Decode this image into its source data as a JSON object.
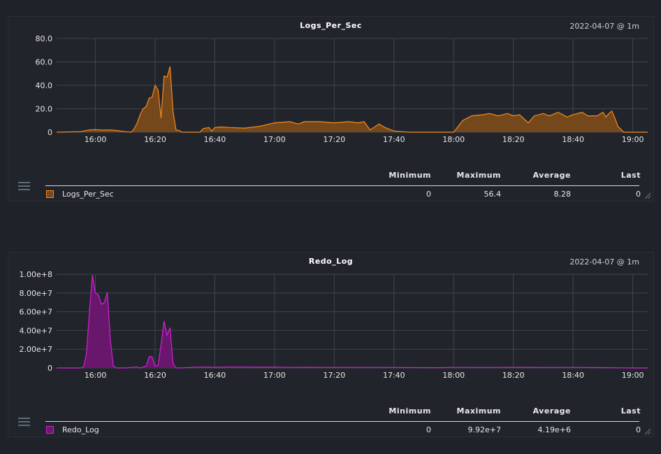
{
  "legend_headers": {
    "minimum": "Minimum",
    "maximum": "Maximum",
    "average": "Average",
    "last": "Last"
  },
  "panels": [
    {
      "title": "Logs_Per_Sec",
      "range_label": "2022-04-07 @ 1m",
      "legend": {
        "name": "Logs_Per_Sec",
        "minimum": "0",
        "maximum": "56.4",
        "average": "8.28",
        "last": "0"
      }
    },
    {
      "title": "Redo_Log",
      "range_label": "2022-04-07 @ 1m",
      "legend": {
        "name": "Redo_Log",
        "minimum": "0",
        "maximum": "9.92e+7",
        "average": "4.19e+6",
        "last": "0"
      }
    }
  ],
  "colors": {
    "background": "#1f2329",
    "panel": "#21252b",
    "grid": "#3f444c",
    "series_0_stroke": "#f58a1f",
    "series_0_fill": "#7a4a1a",
    "series_1_stroke": "#d321d6",
    "series_1_fill": "#6e1670"
  },
  "chart_data": [
    {
      "type": "area",
      "title": "Logs_Per_Sec",
      "xlabel": "",
      "ylabel": "",
      "x_ticks": [
        "16:00",
        "16:20",
        "16:40",
        "17:00",
        "17:20",
        "17:40",
        "18:00",
        "18:20",
        "18:40",
        "19:00"
      ],
      "x_range": [
        "15:47",
        "19:05"
      ],
      "y_ticks": [
        "0",
        "20.0",
        "40.0",
        "60.0",
        "80.0"
      ],
      "ylim": [
        0,
        80
      ],
      "grid": true,
      "legend_position": "bottom",
      "series": [
        {
          "name": "Logs_Per_Sec",
          "x": [
            "15:47",
            "15:55",
            "15:58",
            "16:00",
            "16:02",
            "16:05",
            "16:07",
            "16:10",
            "16:12",
            "16:13",
            "16:14",
            "16:15",
            "16:16",
            "16:17",
            "16:18",
            "16:19",
            "16:20",
            "16:21",
            "16:22",
            "16:23",
            "16:24",
            "16:25",
            "16:26",
            "16:27",
            "16:28",
            "16:29",
            "16:30",
            "16:35",
            "16:36",
            "16:38",
            "16:39",
            "16:40",
            "16:42",
            "16:45",
            "16:50",
            "16:55",
            "17:00",
            "17:05",
            "17:08",
            "17:10",
            "17:15",
            "17:20",
            "17:25",
            "17:28",
            "17:30",
            "17:32",
            "17:35",
            "17:37",
            "17:40",
            "17:45",
            "17:50",
            "17:55",
            "17:58",
            "18:00",
            "18:03",
            "18:06",
            "18:10",
            "18:12",
            "18:15",
            "18:18",
            "18:20",
            "18:22",
            "18:25",
            "18:27",
            "18:30",
            "18:32",
            "18:35",
            "18:38",
            "18:40",
            "18:43",
            "18:45",
            "18:48",
            "18:50",
            "18:51",
            "18:52",
            "18:53",
            "18:54",
            "18:55",
            "18:57",
            "19:00",
            "19:05"
          ],
          "y": [
            0,
            0.5,
            2,
            2.2,
            1.8,
            2,
            1.5,
            0.5,
            0,
            3,
            8,
            15,
            20,
            22,
            29,
            30,
            40,
            36,
            12,
            48,
            47,
            56,
            18,
            2,
            1.5,
            0,
            0,
            0,
            3,
            4,
            1,
            4,
            4.5,
            4,
            3.5,
            5,
            8,
            9,
            7,
            9,
            9,
            8,
            9,
            8,
            9,
            2,
            7,
            4,
            1,
            0,
            0,
            0,
            0,
            0,
            10,
            14,
            15,
            16,
            14,
            16,
            14,
            15,
            8,
            14,
            16,
            14,
            17,
            13,
            15,
            17,
            14,
            14,
            17,
            13,
            16,
            18,
            12,
            5,
            0,
            0,
            0
          ]
        }
      ]
    },
    {
      "type": "area",
      "title": "Redo_Log",
      "xlabel": "",
      "ylabel": "",
      "x_ticks": [
        "16:00",
        "16:20",
        "16:40",
        "17:00",
        "17:20",
        "17:40",
        "18:00",
        "18:20",
        "18:40",
        "19:00"
      ],
      "x_range": [
        "15:47",
        "19:05"
      ],
      "y_ticks": [
        "0",
        "2.00e+7",
        "4.00e+7",
        "6.00e+7",
        "8.00e+7",
        "1.00e+8"
      ],
      "ylim": [
        0,
        100000000
      ],
      "grid": true,
      "legend_position": "bottom",
      "series": [
        {
          "name": "Redo_Log",
          "x": [
            "15:47",
            "15:55",
            "15:56",
            "15:57",
            "15:58",
            "15:59",
            "16:00",
            "16:01",
            "16:02",
            "16:03",
            "16:04",
            "16:05",
            "16:06",
            "16:07",
            "16:08",
            "16:10",
            "16:14",
            "16:15",
            "16:17",
            "16:18",
            "16:19",
            "16:20",
            "16:21",
            "16:22",
            "16:23",
            "16:24",
            "16:25",
            "16:26",
            "16:27",
            "16:28",
            "16:35",
            "16:40",
            "16:45",
            "16:55",
            "17:00",
            "17:05",
            "17:10",
            "17:20",
            "17:30",
            "17:40",
            "17:55",
            "18:00",
            "18:10",
            "18:20",
            "18:30",
            "18:40",
            "18:50",
            "19:00",
            "19:05"
          ],
          "y": [
            0,
            0,
            1000000,
            15000000,
            60000000,
            99200000,
            80000000,
            78000000,
            68000000,
            70000000,
            81000000,
            30000000,
            2000000,
            0,
            0,
            0,
            1000000,
            0,
            2000000,
            12000000,
            12000000,
            2000000,
            3000000,
            25000000,
            50000000,
            35000000,
            43000000,
            5000000,
            0,
            0,
            1000000,
            700000,
            1000000,
            800000,
            900000,
            600000,
            700000,
            600000,
            600000,
            500000,
            300000,
            600000,
            500000,
            700000,
            500000,
            600000,
            400000,
            0,
            0
          ]
        }
      ]
    }
  ]
}
